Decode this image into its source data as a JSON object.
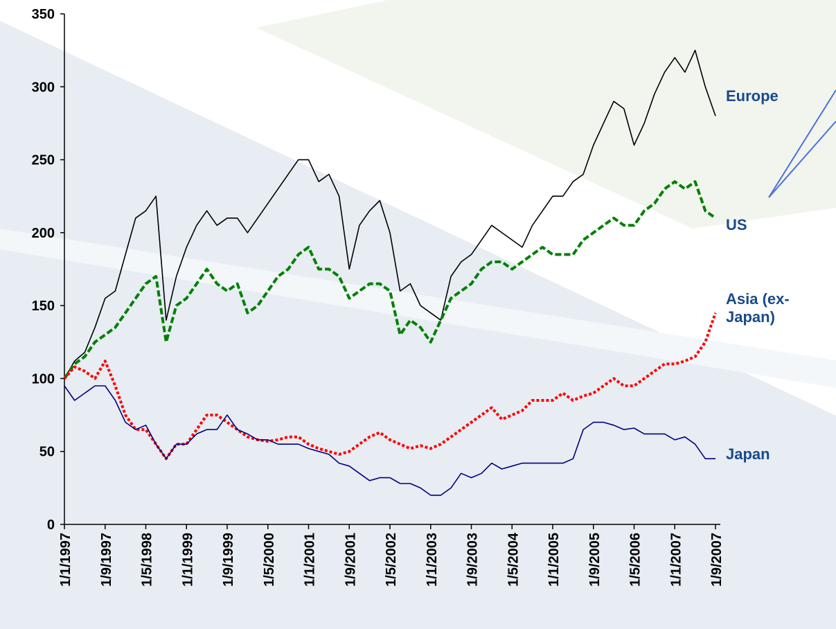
{
  "chart_data": {
    "type": "line",
    "x": [
      "1/1/1997",
      "1/3/1997",
      "1/5/1997",
      "1/7/1997",
      "1/9/1997",
      "1/11/1997",
      "1/1/1998",
      "1/3/1998",
      "1/5/1998",
      "1/7/1998",
      "1/9/1998",
      "1/11/1998",
      "1/1/1999",
      "1/3/1999",
      "1/5/1999",
      "1/7/1999",
      "1/9/1999",
      "1/11/1999",
      "1/1/2000",
      "1/3/2000",
      "1/5/2000",
      "1/7/2000",
      "1/9/2000",
      "1/11/2000",
      "1/1/2001",
      "1/3/2001",
      "1/5/2001",
      "1/7/2001",
      "1/9/2001",
      "1/11/2001",
      "1/1/2002",
      "1/3/2002",
      "1/5/2002",
      "1/7/2002",
      "1/9/2002",
      "1/11/2002",
      "1/1/2003",
      "1/3/2003",
      "1/5/2003",
      "1/7/2003",
      "1/9/2003",
      "1/11/2003",
      "1/1/2004",
      "1/3/2004",
      "1/5/2004",
      "1/7/2004",
      "1/9/2004",
      "1/11/2004",
      "1/1/2005",
      "1/3/2005",
      "1/5/2005",
      "1/7/2005",
      "1/9/2005",
      "1/11/2005",
      "1/1/2006",
      "1/3/2006",
      "1/5/2006",
      "1/7/2006",
      "1/9/2006",
      "1/11/2006",
      "1/1/2007",
      "1/3/2007",
      "1/5/2007",
      "1/7/2007",
      "1/9/2007"
    ],
    "xlim": [
      "1/1/1997",
      "1/9/2007"
    ],
    "xticks": [
      "1/1/1997",
      "1/9/1997",
      "1/5/1998",
      "1/1/1999",
      "1/9/1999",
      "1/5/2000",
      "1/1/2001",
      "1/9/2001",
      "1/5/2002",
      "1/1/2003",
      "1/9/2003",
      "1/5/2004",
      "1/1/2005",
      "1/9/2005",
      "1/5/2006",
      "1/1/2007",
      "1/9/2007"
    ],
    "ylim": [
      0,
      350
    ],
    "yticks": [
      0,
      50,
      100,
      150,
      200,
      250,
      300,
      350
    ],
    "series": [
      {
        "name": "Europe",
        "color": "#000000",
        "line_style": "solid",
        "values": [
          100,
          112,
          118,
          135,
          155,
          160,
          185,
          210,
          215,
          225,
          140,
          170,
          190,
          205,
          215,
          205,
          210,
          210,
          200,
          210,
          220,
          230,
          240,
          250,
          250,
          235,
          240,
          225,
          175,
          205,
          215,
          222,
          200,
          160,
          165,
          150,
          145,
          140,
          170,
          180,
          185,
          195,
          205,
          200,
          195,
          190,
          205,
          215,
          225,
          225,
          235,
          240,
          260,
          275,
          290,
          285,
          260,
          275,
          295,
          310,
          320,
          310,
          325,
          300,
          280
        ]
      },
      {
        "name": "US",
        "color": "#008000",
        "line_style": "dashed",
        "values": [
          100,
          110,
          115,
          125,
          130,
          135,
          145,
          155,
          165,
          170,
          125,
          150,
          155,
          165,
          175,
          165,
          160,
          165,
          145,
          150,
          160,
          170,
          175,
          185,
          190,
          175,
          175,
          170,
          155,
          160,
          165,
          165,
          160,
          130,
          140,
          135,
          125,
          140,
          155,
          160,
          165,
          175,
          180,
          180,
          175,
          180,
          185,
          190,
          185,
          185,
          185,
          195,
          200,
          205,
          210,
          205,
          205,
          215,
          220,
          230,
          235,
          230,
          235,
          215,
          210
        ]
      },
      {
        "name": "Asia (ex-Japan)",
        "color": "#ff0000",
        "line_style": "dotted",
        "values": [
          100,
          108,
          105,
          100,
          112,
          95,
          75,
          65,
          65,
          55,
          45,
          55,
          55,
          65,
          75,
          75,
          70,
          65,
          60,
          58,
          57,
          58,
          60,
          60,
          55,
          52,
          50,
          48,
          50,
          55,
          60,
          63,
          58,
          55,
          52,
          54,
          52,
          55,
          60,
          65,
          70,
          75,
          80,
          72,
          75,
          78,
          85,
          85,
          85,
          90,
          85,
          88,
          90,
          95,
          100,
          95,
          95,
          100,
          105,
          110,
          110,
          112,
          115,
          125,
          145
        ]
      },
      {
        "name": "Japan",
        "color": "#000080",
        "line_style": "solid",
        "values": [
          95,
          85,
          90,
          95,
          95,
          85,
          70,
          65,
          68,
          55,
          45,
          55,
          55,
          62,
          65,
          65,
          75,
          65,
          62,
          58,
          58,
          55,
          55,
          55,
          52,
          50,
          48,
          42,
          40,
          35,
          30,
          32,
          32,
          28,
          28,
          25,
          20,
          20,
          25,
          35,
          32,
          35,
          42,
          38,
          40,
          42,
          42,
          42,
          42,
          42,
          45,
          65,
          70,
          70,
          68,
          65,
          66,
          62,
          62,
          62,
          58,
          60,
          55,
          45,
          45
        ]
      }
    ]
  }
}
